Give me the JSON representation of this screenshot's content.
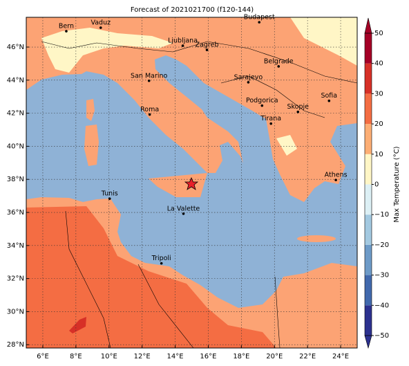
{
  "title": "Forecast of 2021021700 (f120-144)",
  "map": {
    "lonlim": [
      5,
      25
    ],
    "latlim": [
      27.8,
      47.8
    ],
    "lonticks": [
      {
        "value": 6,
        "label": "6°E"
      },
      {
        "value": 8,
        "label": "8°E"
      },
      {
        "value": 10,
        "label": "10°E"
      },
      {
        "value": 12,
        "label": "12°E"
      },
      {
        "value": 14,
        "label": "14°E"
      },
      {
        "value": 16,
        "label": "16°E"
      },
      {
        "value": 18,
        "label": "18°E"
      },
      {
        "value": 20,
        "label": "20°E"
      },
      {
        "value": 22,
        "label": "22°E"
      },
      {
        "value": 24,
        "label": "24°E"
      }
    ],
    "latticks": [
      {
        "value": 28,
        "label": "28°N"
      },
      {
        "value": 30,
        "label": "30°N"
      },
      {
        "value": 32,
        "label": "32°N"
      },
      {
        "value": 34,
        "label": "34°N"
      },
      {
        "value": 36,
        "label": "36°N"
      },
      {
        "value": 38,
        "label": "38°N"
      },
      {
        "value": 40,
        "label": "40°N"
      },
      {
        "value": 42,
        "label": "42°N"
      },
      {
        "value": 44,
        "label": "44°N"
      },
      {
        "value": 46,
        "label": "46°N"
      }
    ],
    "grid": true,
    "cities": [
      {
        "name": "Bern",
        "lon": 7.42,
        "lat": 46.96
      },
      {
        "name": "Vaduz",
        "lon": 9.5,
        "lat": 47.17
      },
      {
        "name": "Budapest",
        "lon": 19.08,
        "lat": 47.5
      },
      {
        "name": "Ljubljana",
        "lon": 14.46,
        "lat": 46.08
      },
      {
        "name": "Zagreb",
        "lon": 15.92,
        "lat": 45.83
      },
      {
        "name": "Belgrade",
        "lon": 20.25,
        "lat": 44.83
      },
      {
        "name": "San Marino",
        "lon": 12.42,
        "lat": 43.96
      },
      {
        "name": "Sarajevo",
        "lon": 18.42,
        "lat": 43.87
      },
      {
        "name": "Sofia",
        "lon": 23.3,
        "lat": 42.75
      },
      {
        "name": "Roma",
        "lon": 12.46,
        "lat": 41.92
      },
      {
        "name": "Podgorica",
        "lon": 19.25,
        "lat": 42.46
      },
      {
        "name": "Skopje",
        "lon": 21.42,
        "lat": 42.08
      },
      {
        "name": "Tirana",
        "lon": 19.79,
        "lat": 41.37
      },
      {
        "name": "Athens",
        "lon": 23.71,
        "lat": 37.96
      },
      {
        "name": "Tunis",
        "lon": 10.04,
        "lat": 36.83
      },
      {
        "name": "La Valette",
        "lon": 14.5,
        "lat": 35.92
      },
      {
        "name": "Tripoli",
        "lon": 13.17,
        "lat": 32.92
      }
    ]
  },
  "colorbar": {
    "label": "Max Temperature (°C)",
    "ticks": [
      {
        "value": -50,
        "label": "−50"
      },
      {
        "value": -40,
        "label": "−40"
      },
      {
        "value": -30,
        "label": "−30"
      },
      {
        "value": -20,
        "label": "−20"
      },
      {
        "value": -10,
        "label": "−10"
      },
      0,
      10,
      20,
      30,
      40,
      50
    ],
    "colors": [
      "#2c318f",
      "#4169ad",
      "#6d9bc8",
      "#a3c9e1",
      "#ddf0f5",
      "#fff6c6",
      "#fdae74",
      "#f46d43",
      "#d73027",
      "#a50026"
    ]
  }
}
